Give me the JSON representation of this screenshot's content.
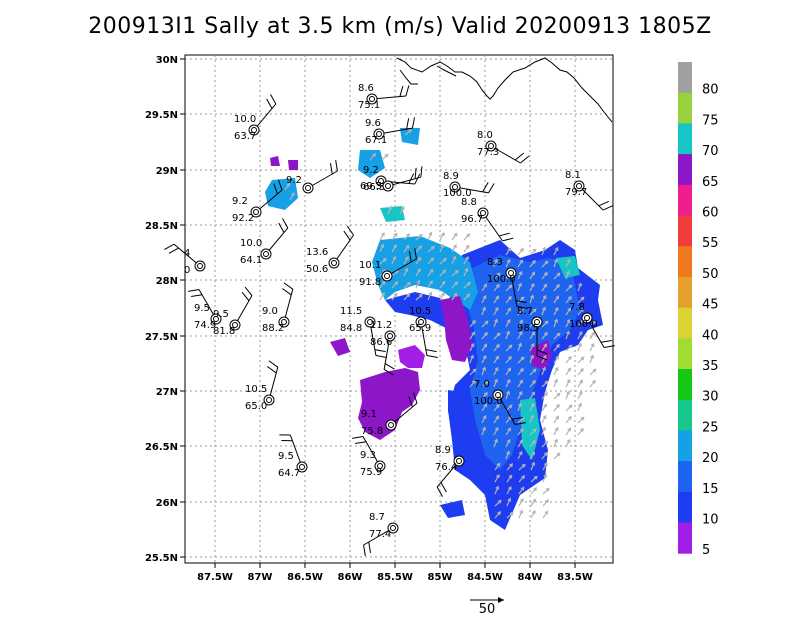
{
  "title": "200913I1 Sally at 3.5 km (m/s) Valid 20200913 1805Z",
  "map": {
    "lon_ticks": [
      "87.5W",
      "87W",
      "86.5W",
      "86W",
      "85.5W",
      "85W",
      "84.5W",
      "84W",
      "83.5W"
    ],
    "lat_ticks": [
      "30N",
      "29.5N",
      "29N",
      "28.5N",
      "28N",
      "27.5N",
      "27N",
      "26.5N",
      "26N",
      "25.5N"
    ],
    "lon_range": [
      -87.8,
      -83.2
    ],
    "lat_range": [
      25.45,
      30.05
    ],
    "grid": "dotted"
  },
  "colorbar": {
    "labels": [
      "80",
      "75",
      "70",
      "65",
      "60",
      "55",
      "50",
      "45",
      "40",
      "35",
      "30",
      "25",
      "20",
      "15",
      "10",
      "5"
    ],
    "colors": [
      "#a0a0a0",
      "#96d23c",
      "#16c6c6",
      "#8c16c8",
      "#f01e8c",
      "#f03c3c",
      "#f0781e",
      "#e6a02d",
      "#dcd232",
      "#a0dc32",
      "#16c816",
      "#16c88c",
      "#16a0e6",
      "#1e64f0",
      "#1e3cf0",
      "#a01ee6"
    ]
  },
  "reference_vector": {
    "label": "50"
  },
  "observations": [
    {
      "speed": "8.6",
      "rh": "75.1"
    },
    {
      "speed": "10.0",
      "rh": "63.7"
    },
    {
      "speed": "9.6",
      "rh": "67.1"
    },
    {
      "speed": "8.0",
      "rh": "77.3"
    },
    {
      "speed": "9.2",
      "rh": "66.5"
    },
    {
      "speed": "69.5",
      "rh": ""
    },
    {
      "speed": "8.9",
      "rh": "100.0"
    },
    {
      "speed": "8.1",
      "rh": "79.7"
    },
    {
      "speed": "9.2",
      "rh": "92.2"
    },
    {
      "speed": "9.2",
      "rh": ""
    },
    {
      "speed": "8.8",
      "rh": "96.7"
    },
    {
      "speed": "10.0",
      "rh": "64.1"
    },
    {
      "speed": "13.6",
      "rh": "50.6"
    },
    {
      "speed": "4",
      "rh": "0"
    },
    {
      "speed": "10.1",
      "rh": "91.8"
    },
    {
      "speed": "8.3",
      "rh": "100.0"
    },
    {
      "speed": "9.5",
      "rh": "74.9"
    },
    {
      "speed": "9.5",
      "rh": "81.8"
    },
    {
      "speed": "9.0",
      "rh": "88.2"
    },
    {
      "speed": "11.5",
      "rh": "84.8"
    },
    {
      "speed": "10.5",
      "rh": "65.9"
    },
    {
      "speed": "11.2",
      "rh": "86.6"
    },
    {
      "speed": "8.7",
      "rh": "98.5"
    },
    {
      "speed": "7.8",
      "rh": "100.0"
    },
    {
      "speed": "7.0",
      "rh": "100.0"
    },
    {
      "speed": "10.5",
      "rh": "65.0"
    },
    {
      "speed": "9.1",
      "rh": "75.8"
    },
    {
      "speed": "9.5",
      "rh": "64.7"
    },
    {
      "speed": "9.3",
      "rh": "75.9"
    },
    {
      "speed": "8.9",
      "rh": "76.4"
    },
    {
      "speed": "8.7",
      "rh": "77.4"
    }
  ]
}
